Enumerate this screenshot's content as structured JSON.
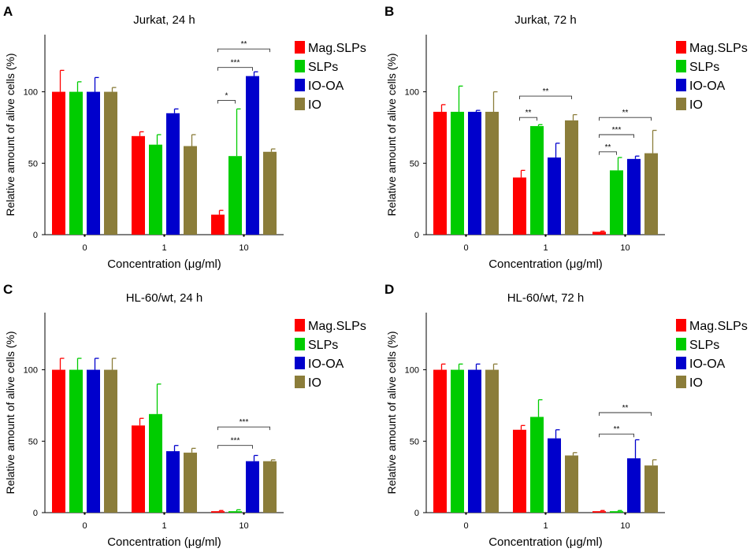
{
  "figure": {
    "xlabel_prefix": "Concentration (",
    "xlabel_mu": "μ",
    "xlabel_suffix": "g/ml)"
  },
  "colors": {
    "Mag.SLPs": "#ff0000",
    "SLPs": "#00cc00",
    "IO-OA": "#0000cc",
    "IO": "#8b7d3a"
  },
  "chart_data": [
    {
      "panel_label": "A",
      "type": "bar",
      "title": "Jurkat, 24 h",
      "categories": [
        "0",
        "1",
        "10"
      ],
      "xlabel": "Concentration (μg/ml)",
      "ylabel": "Relative amount of alive cells (%)",
      "ylim": [
        0,
        140
      ],
      "yticks": [
        0,
        50,
        100
      ],
      "legend_position": "right",
      "series": [
        {
          "name": "Mag.SLPs",
          "values": [
            100,
            69,
            14
          ],
          "errors": [
            15,
            3,
            3
          ]
        },
        {
          "name": "SLPs",
          "values": [
            100,
            63,
            55
          ],
          "errors": [
            7,
            7,
            33
          ]
        },
        {
          "name": "IO-OA",
          "values": [
            100,
            85,
            111
          ],
          "errors": [
            10,
            3,
            3
          ]
        },
        {
          "name": "IO",
          "values": [
            100,
            62,
            58
          ],
          "errors": [
            3,
            8,
            2
          ]
        }
      ],
      "annotations": [
        {
          "text": "*",
          "category": 2,
          "from": 0,
          "to": 1,
          "y": 94
        },
        {
          "text": "***",
          "category": 2,
          "from": 0,
          "to": 2,
          "y": 117
        },
        {
          "text": "**",
          "category": 2,
          "from": 0,
          "to": 3,
          "y": 130
        }
      ]
    },
    {
      "panel_label": "B",
      "type": "bar",
      "title": "Jurkat, 72 h",
      "categories": [
        "0",
        "1",
        "10"
      ],
      "xlabel": "Concentration (μg/ml)",
      "ylabel": "Relative amount of alive cells (%)",
      "ylim": [
        0,
        140
      ],
      "yticks": [
        0,
        50,
        100
      ],
      "legend_position": "right",
      "series": [
        {
          "name": "Mag.SLPs",
          "values": [
            86,
            40,
            2
          ],
          "errors": [
            5,
            5,
            0.5
          ]
        },
        {
          "name": "SLPs",
          "values": [
            86,
            76,
            45
          ],
          "errors": [
            18,
            1,
            9
          ]
        },
        {
          "name": "IO-OA",
          "values": [
            86,
            54,
            53
          ],
          "errors": [
            1,
            10,
            2
          ]
        },
        {
          "name": "IO",
          "values": [
            86,
            80,
            57
          ],
          "errors": [
            14,
            4,
            16
          ]
        }
      ],
      "annotations": [
        {
          "text": "**",
          "category": 1,
          "from": 0,
          "to": 1,
          "y": 82
        },
        {
          "text": "**",
          "category": 1,
          "from": 0,
          "to": 3,
          "y": 97
        },
        {
          "text": "**",
          "category": 2,
          "from": 0,
          "to": 1,
          "y": 58
        },
        {
          "text": "***",
          "category": 2,
          "from": 0,
          "to": 2,
          "y": 70
        },
        {
          "text": "**",
          "category": 2,
          "from": 0,
          "to": 3,
          "y": 82
        }
      ]
    },
    {
      "panel_label": "C",
      "type": "bar",
      "title": "HL-60/wt, 24 h",
      "categories": [
        "0",
        "1",
        "10"
      ],
      "xlabel": "Concentration (μg/ml)",
      "ylabel": "Relative amount of alive cells (%)",
      "ylim": [
        0,
        140
      ],
      "yticks": [
        0,
        50,
        100
      ],
      "legend_position": "right",
      "series": [
        {
          "name": "Mag.SLPs",
          "values": [
            100,
            61,
            1
          ],
          "errors": [
            8,
            5,
            0.5
          ]
        },
        {
          "name": "SLPs",
          "values": [
            100,
            69,
            1
          ],
          "errors": [
            8,
            21,
            1
          ]
        },
        {
          "name": "IO-OA",
          "values": [
            100,
            43,
            36
          ],
          "errors": [
            8,
            4,
            4
          ]
        },
        {
          "name": "IO",
          "values": [
            100,
            42,
            36
          ],
          "errors": [
            8,
            3,
            1
          ]
        }
      ],
      "annotations": [
        {
          "text": "***",
          "category": 2,
          "from": 0,
          "to": 2,
          "y": 47
        },
        {
          "text": "***",
          "category": 2,
          "from": 0,
          "to": 3,
          "y": 60
        }
      ]
    },
    {
      "panel_label": "D",
      "type": "bar",
      "title": "HL-60/wt, 72 h",
      "categories": [
        "0",
        "1",
        "10"
      ],
      "xlabel": "Concentration (μg/ml)",
      "ylabel": "Relative amount of alive cells (%)",
      "ylim": [
        0,
        140
      ],
      "yticks": [
        0,
        50,
        100
      ],
      "legend_position": "right",
      "series": [
        {
          "name": "Mag.SLPs",
          "values": [
            100,
            58,
            1
          ],
          "errors": [
            4,
            3,
            0.5
          ]
        },
        {
          "name": "SLPs",
          "values": [
            100,
            67,
            1
          ],
          "errors": [
            4,
            12,
            0.5
          ]
        },
        {
          "name": "IO-OA",
          "values": [
            100,
            52,
            38
          ],
          "errors": [
            4,
            6,
            13
          ]
        },
        {
          "name": "IO",
          "values": [
            100,
            40,
            33
          ],
          "errors": [
            4,
            2,
            4
          ]
        }
      ],
      "annotations": [
        {
          "text": "**",
          "category": 2,
          "from": 0,
          "to": 2,
          "y": 55
        },
        {
          "text": "**",
          "category": 2,
          "from": 0,
          "to": 3,
          "y": 70
        }
      ]
    }
  ]
}
